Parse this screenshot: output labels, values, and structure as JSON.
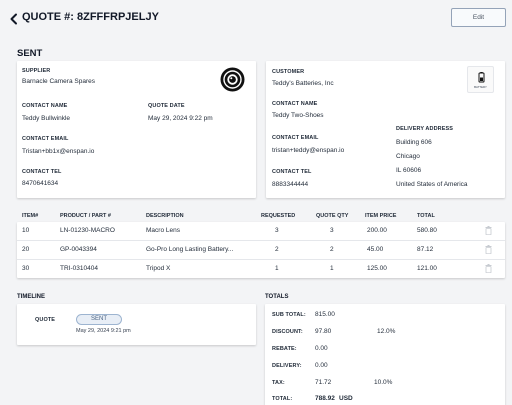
{
  "header": {
    "back_icon": "chevron-left-icon",
    "title": "QUOTE #: 8ZFFFRPJELJY",
    "edit_label": "Edit"
  },
  "status": "SENT",
  "supplier": {
    "label": "SUPPLIER",
    "name": "Barnacle Camera Spares",
    "contact_name_label": "CONTACT NAME",
    "contact_name": "Teddy Bullwinkle",
    "quote_date_label": "QUOTE DATE",
    "quote_date": "May 29, 2024 9:22 pm",
    "contact_email_label": "CONTACT EMAIL",
    "contact_email": "Tristan+bb1x@enspan.io",
    "contact_tel_label": "CONTACT TEL",
    "contact_tel": "8470641634"
  },
  "customer": {
    "label": "CUSTOMER",
    "name": "Teddy's Batteries, Inc",
    "logo_text": "BATTERY",
    "contact_name_label": "CONTACT NAME",
    "contact_name": "Teddy Two-Shoes",
    "contact_email_label": "CONTACT EMAIL",
    "contact_email": "tristan+teddy@enspan.io",
    "contact_tel_label": "CONTACT TEL",
    "contact_tel": "8883344444",
    "delivery_address_label": "DELIVERY ADDRESS",
    "delivery_address": [
      "Building 606",
      "Chicago",
      "IL 60606",
      "United States of America"
    ]
  },
  "items_table": {
    "headers": [
      "ITEM#",
      "PRODUCT / PART #",
      "DESCRIPTION",
      "REQUESTED",
      "QUOTE QTY",
      "ITEM PRICE",
      "TOTAL"
    ],
    "rows": [
      {
        "item": "10",
        "part": "LN-01230-MACRO",
        "description": "Macro Lens",
        "requested": "3",
        "quote_qty": "3",
        "price": "200.00",
        "total": "580.80"
      },
      {
        "item": "20",
        "part": "GP-0043394",
        "description": "Go-Pro Long Lasting Battery...",
        "requested": "2",
        "quote_qty": "2",
        "price": "45.00",
        "total": "87.12"
      },
      {
        "item": "30",
        "part": "TRI-0310404",
        "description": "Tripod X",
        "requested": "1",
        "quote_qty": "1",
        "price": "125.00",
        "total": "121.00"
      }
    ]
  },
  "timeline": {
    "title": "TIMELINE",
    "entry_label": "QUOTE",
    "entry_status": "SENT",
    "entry_date": "May 29, 2024 9:21 pm"
  },
  "totals": {
    "title": "TOTALS",
    "rows": [
      {
        "label": "SUB TOTAL:",
        "value": "815.00",
        "pct": ""
      },
      {
        "label": "DISCOUNT:",
        "value": "97.80",
        "pct": "12.0%"
      },
      {
        "label": "REBATE:",
        "value": "0.00",
        "pct": ""
      },
      {
        "label": "DELIVERY:",
        "value": "0.00",
        "pct": ""
      },
      {
        "label": "TAX:",
        "value": "71.72",
        "pct": "10.0%"
      }
    ],
    "total_label": "TOTAL:",
    "total_value": "788.92",
    "currency": "USD"
  }
}
